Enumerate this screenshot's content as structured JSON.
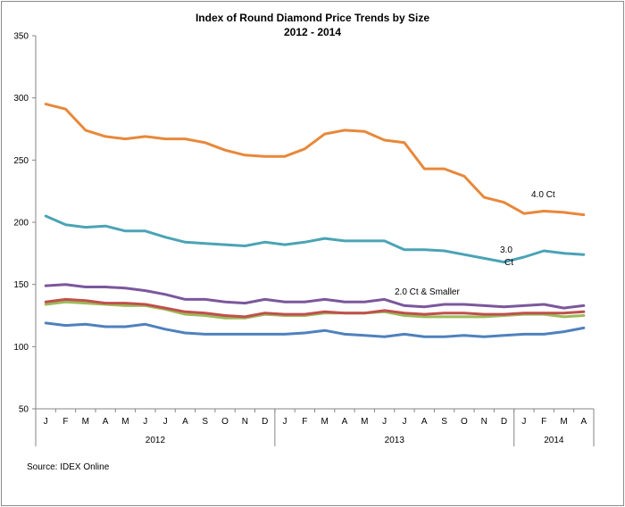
{
  "chart_data": {
    "type": "line",
    "title": "Index of Round Diamond  Price Trends by Size",
    "subtitle": "2012 - 2014",
    "source": "Source:  IDEX Online",
    "ylim": [
      50,
      350
    ],
    "yticks": [
      50,
      100,
      150,
      200,
      250,
      300,
      350
    ],
    "grid": false,
    "x_month_labels": [
      "J",
      "F",
      "M",
      "A",
      "M",
      "J",
      "J",
      "A",
      "S",
      "O",
      "N",
      "D",
      "J",
      "F",
      "M",
      "A",
      "M",
      "J",
      "J",
      "A",
      "S",
      "O",
      "N",
      "D",
      "J",
      "F",
      "M",
      "A"
    ],
    "x_year_groups": [
      {
        "label": "2012",
        "start": 0,
        "end": 11
      },
      {
        "label": "2013",
        "start": 12,
        "end": 23
      },
      {
        "label": "2014",
        "start": 24,
        "end": 27
      }
    ],
    "series": [
      {
        "label": "4.0 Ct",
        "color": "#e8883a",
        "values": [
          295,
          291,
          274,
          269,
          267,
          269,
          267,
          267,
          264,
          258,
          254,
          253,
          253,
          259,
          271,
          274,
          273,
          266,
          264,
          243,
          243,
          237,
          220,
          216,
          207,
          209,
          208,
          206
        ]
      },
      {
        "label": "3.0 Ct",
        "color": "#4ba3b5",
        "values": [
          205,
          198,
          196,
          197,
          193,
          193,
          188,
          184,
          183,
          182,
          181,
          184,
          182,
          184,
          187,
          185,
          185,
          185,
          178,
          178,
          177,
          174,
          171,
          168,
          172,
          177,
          175,
          174
        ]
      },
      {
        "label": "2.0 Ct & Smaller",
        "color": "#7b579c",
        "values": [
          149,
          150,
          148,
          148,
          147,
          145,
          142,
          138,
          138,
          136,
          135,
          138,
          136,
          136,
          138,
          136,
          136,
          138,
          133,
          132,
          134,
          134,
          133,
          132,
          133,
          134,
          131,
          133
        ]
      },
      {
        "label": "",
        "color": "#c0504d",
        "values": [
          136,
          138,
          137,
          135,
          135,
          134,
          131,
          128,
          127,
          125,
          124,
          127,
          126,
          126,
          128,
          127,
          127,
          129,
          127,
          126,
          127,
          127,
          126,
          126,
          127,
          127,
          127,
          128
        ]
      },
      {
        "label": "",
        "color": "#9bbb59",
        "values": [
          134,
          136,
          135,
          134,
          133,
          133,
          130,
          126,
          125,
          123,
          123,
          126,
          125,
          125,
          127,
          127,
          127,
          128,
          125,
          124,
          124,
          124,
          124,
          125,
          126,
          126,
          124,
          125
        ]
      },
      {
        "label": "",
        "color": "#4f81bd",
        "values": [
          119,
          117,
          118,
          116,
          116,
          118,
          114,
          111,
          110,
          110,
          110,
          110,
          110,
          111,
          113,
          110,
          109,
          108,
          110,
          108,
          108,
          109,
          108,
          109,
          110,
          110,
          112,
          115
        ]
      }
    ]
  }
}
